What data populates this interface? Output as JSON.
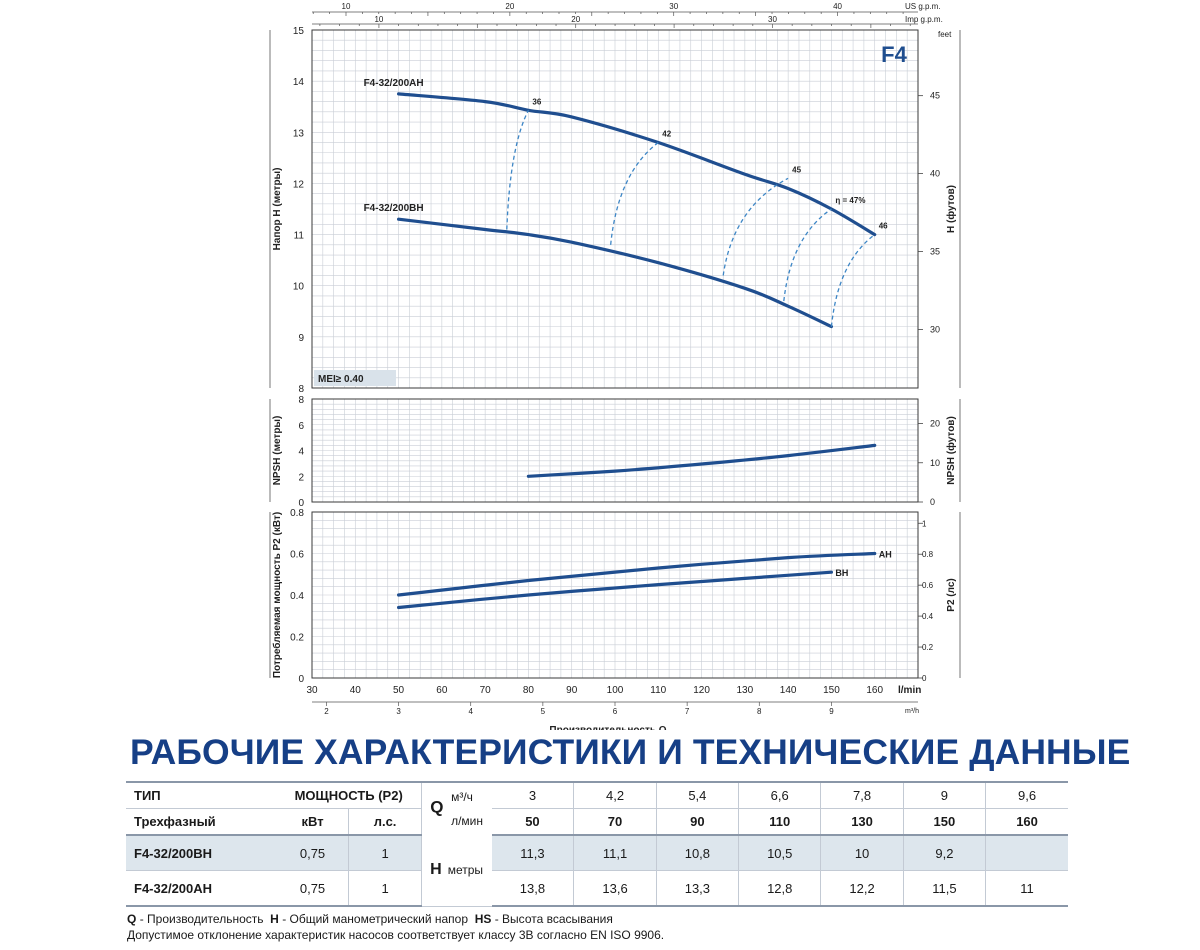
{
  "chart_data": [
    {
      "type": "line",
      "badge": "F4",
      "ylabel": "Напор H (метры)",
      "ylabel_right": "H (футов)",
      "right_unit": "feet",
      "top_axes": [
        {
          "unit": "US g.p.m.",
          "ticks": [
            10,
            20,
            30,
            40
          ]
        },
        {
          "unit": "Imp g.p.m.",
          "ticks": [
            10,
            20,
            30
          ]
        }
      ],
      "xlim": [
        30,
        170
      ],
      "ylim": [
        8,
        15
      ],
      "yticks": [
        8,
        9,
        10,
        11,
        12,
        13,
        14,
        15
      ],
      "yticks_right_ft": [
        30,
        35,
        40,
        45
      ],
      "grid": true,
      "mei_label": "MEI≥ 0.40",
      "series": [
        {
          "name": "F4-32/200AH",
          "x": [
            50,
            70,
            80,
            90,
            110,
            130,
            140,
            150,
            160
          ],
          "y": [
            13.75,
            13.6,
            13.43,
            13.3,
            12.8,
            12.18,
            11.9,
            11.5,
            11.0
          ]
        },
        {
          "name": "F4-32/200BH",
          "x": [
            50,
            70,
            80,
            90,
            110,
            130,
            140,
            150
          ],
          "y": [
            11.3,
            11.1,
            11.0,
            10.85,
            10.45,
            9.95,
            9.6,
            9.2
          ]
        }
      ],
      "efficiency_labels": [
        {
          "text": "36",
          "x": 80,
          "y": 13.43
        },
        {
          "text": "42",
          "x": 110,
          "y": 12.8
        },
        {
          "text": "45",
          "x": 140,
          "y": 12.1
        },
        {
          "text": "η = 47%",
          "x": 150,
          "y": 11.5
        },
        {
          "text": "46",
          "x": 160,
          "y": 11.0
        }
      ],
      "efficiency_lines": [
        {
          "top": [
            80,
            13.43
          ],
          "bottom": [
            75,
            11.1
          ]
        },
        {
          "top": [
            110,
            12.8
          ],
          "bottom": [
            99,
            10.8
          ]
        },
        {
          "top": [
            140,
            12.1
          ],
          "bottom": [
            125,
            10.2
          ]
        },
        {
          "top": [
            150,
            11.5
          ],
          "bottom": [
            139,
            9.7
          ]
        },
        {
          "top": [
            160,
            11.0
          ],
          "bottom": [
            150,
            9.2
          ]
        }
      ]
    },
    {
      "type": "line",
      "ylabel": "NPSH (метры)",
      "ylabel_right": "NPSH (футов)",
      "xlim": [
        30,
        170
      ],
      "ylim": [
        0,
        8
      ],
      "yticks": [
        0,
        2,
        4,
        6,
        8
      ],
      "yticks_right_ft": [
        0,
        10,
        20
      ],
      "grid": true,
      "series": [
        {
          "name": "NPSH",
          "x": [
            80,
            100,
            120,
            140,
            160
          ],
          "y": [
            2.0,
            2.4,
            2.95,
            3.6,
            4.4
          ]
        }
      ]
    },
    {
      "type": "line",
      "ylabel": "Потребляемая мощность P2 (кВт)",
      "ylabel_right": "P2 (лс)",
      "xlabel": "Производительность Q",
      "xunit": "l/min",
      "xunit_bottom": "m³/h",
      "xlim": [
        30,
        170
      ],
      "ylim": [
        0,
        0.8
      ],
      "xticks": [
        30,
        40,
        50,
        60,
        70,
        80,
        90,
        100,
        110,
        120,
        130,
        140,
        150,
        160
      ],
      "yticks": [
        0,
        0.2,
        0.4,
        0.6,
        0.8
      ],
      "yticks_right_hp": [
        0,
        0.2,
        0.4,
        0.6,
        0.8,
        1
      ],
      "xticks_m3h": [
        2,
        3,
        4,
        5,
        6,
        7,
        8,
        9
      ],
      "grid": true,
      "series": [
        {
          "name": "AH",
          "x": [
            50,
            80,
            110,
            140,
            160
          ],
          "y": [
            0.4,
            0.47,
            0.53,
            0.58,
            0.6
          ]
        },
        {
          "name": "BH",
          "x": [
            50,
            80,
            110,
            130,
            150
          ],
          "y": [
            0.34,
            0.4,
            0.45,
            0.48,
            0.51
          ]
        }
      ]
    }
  ],
  "heading": "РАБОЧИЕ ХАРАКТЕРИСТИКИ И ТЕХНИЧЕСКИЕ ДАННЫЕ",
  "table": {
    "col_type": "ТИП",
    "col_type_sub": "Трехфазный",
    "col_power": "МОЩНОСТЬ (P2)",
    "col_kw": "кВт",
    "col_hp": "л.с.",
    "q_letter": "Q",
    "q_unit_m3h": "м³/ч",
    "q_unit_lmin": "л/мин",
    "q_m3h": [
      "3",
      "4,2",
      "5,4",
      "6,6",
      "7,8",
      "9",
      "9,6"
    ],
    "q_lmin": [
      "50",
      "70",
      "90",
      "110",
      "130",
      "150",
      "160"
    ],
    "h_letter": "H",
    "h_unit": "метры",
    "rows": [
      {
        "model": "F4-32/200BH",
        "kw": "0,75",
        "hp": "1",
        "head": [
          "11,3",
          "11,1",
          "10,8",
          "10,5",
          "10",
          "9,2",
          ""
        ]
      },
      {
        "model": "F4-32/200AH",
        "kw": "0,75",
        "hp": "1",
        "head": [
          "13,8",
          "13,6",
          "13,3",
          "12,8",
          "12,2",
          "11,5",
          "11"
        ]
      }
    ]
  },
  "footnote": {
    "q_key": "Q",
    "q_text": "- Производительность",
    "h_key": "H",
    "h_text": "- Общий манометрический напор",
    "hs_key": "HS",
    "hs_text": "- Высота всасывания",
    "line2": "Допустимое отклонение характеристик насосов соответствует классу 3B согласно EN ISO 9906."
  },
  "colors": {
    "curve": "#1f4e8f",
    "efficiency": "#3d86c6",
    "heading": "#163f86",
    "grid": "#c9ced6",
    "badge": "#1f4e8f"
  }
}
